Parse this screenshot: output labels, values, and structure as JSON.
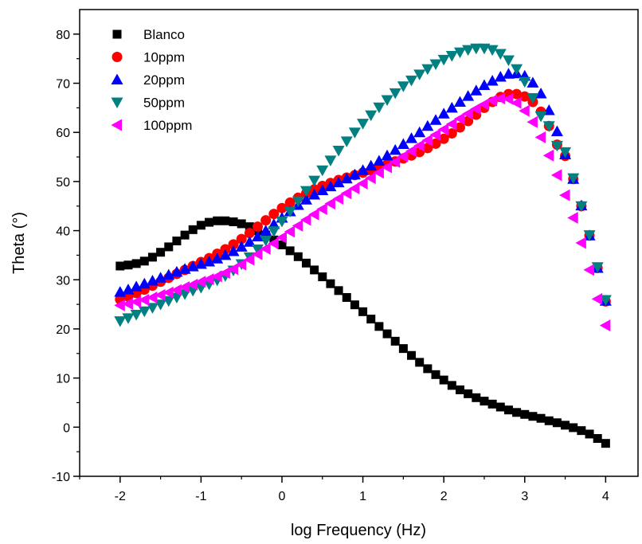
{
  "chart_data": {
    "type": "scatter",
    "title": "",
    "xlabel": "log Frequency (Hz)",
    "ylabel": "Theta (°)",
    "xlim": [
      -2.5,
      4.4
    ],
    "ylim": [
      -10,
      85
    ],
    "xticks": [
      -2,
      -1,
      0,
      1,
      2,
      3,
      4
    ],
    "yticks": [
      -10,
      0,
      10,
      20,
      30,
      40,
      50,
      60,
      70,
      80
    ],
    "legend_position": "top-left",
    "grid": false,
    "series": [
      {
        "name": "Blanco",
        "marker": "square",
        "color": "#000000",
        "x": [
          -2.0,
          -1.9,
          -1.8,
          -1.7,
          -1.6,
          -1.5,
          -1.4,
          -1.3,
          -1.2,
          -1.1,
          -1.0,
          -0.9,
          -0.8,
          -0.7,
          -0.6,
          -0.5,
          -0.4,
          -0.3,
          -0.2,
          -0.1,
          0.0,
          0.1,
          0.2,
          0.3,
          0.4,
          0.5,
          0.6,
          0.7,
          0.8,
          0.9,
          1.0,
          1.1,
          1.2,
          1.3,
          1.4,
          1.5,
          1.6,
          1.7,
          1.8,
          1.9,
          2.0,
          2.1,
          2.2,
          2.3,
          2.4,
          2.5,
          2.6,
          2.7,
          2.8,
          2.9,
          3.0,
          3.1,
          3.2,
          3.3,
          3.4,
          3.5,
          3.6,
          3.7,
          3.8,
          3.9,
          4.0
        ],
        "y": [
          32.8,
          33.0,
          33.3,
          33.8,
          34.6,
          35.6,
          36.7,
          37.9,
          39.1,
          40.2,
          41.1,
          41.7,
          42.0,
          42.0,
          41.8,
          41.4,
          40.8,
          40.0,
          39.1,
          38.1,
          37.1,
          35.9,
          34.7,
          33.4,
          32.0,
          30.6,
          29.2,
          27.8,
          26.4,
          24.9,
          23.5,
          22.0,
          20.5,
          19.0,
          17.5,
          16.0,
          14.6,
          13.2,
          11.9,
          10.7,
          9.6,
          8.5,
          7.6,
          6.8,
          6.0,
          5.3,
          4.7,
          4.1,
          3.5,
          3.0,
          2.6,
          2.2,
          1.8,
          1.3,
          0.9,
          0.4,
          -0.1,
          -0.7,
          -1.4,
          -2.3,
          -3.3
        ]
      },
      {
        "name": "10ppm",
        "marker": "circle",
        "color": "#ff0000",
        "x": [
          -2.0,
          -1.9,
          -1.8,
          -1.7,
          -1.6,
          -1.5,
          -1.4,
          -1.3,
          -1.2,
          -1.1,
          -1.0,
          -0.9,
          -0.8,
          -0.7,
          -0.6,
          -0.5,
          -0.4,
          -0.3,
          -0.2,
          -0.1,
          0.0,
          0.1,
          0.2,
          0.3,
          0.4,
          0.5,
          0.6,
          0.7,
          0.8,
          0.9,
          1.0,
          1.1,
          1.2,
          1.3,
          1.4,
          1.5,
          1.6,
          1.7,
          1.8,
          1.9,
          2.0,
          2.1,
          2.2,
          2.3,
          2.4,
          2.5,
          2.6,
          2.7,
          2.8,
          2.9,
          3.0,
          3.1,
          3.2,
          3.3,
          3.4,
          3.5,
          3.6,
          3.7,
          3.8,
          3.9,
          4.0
        ],
        "y": [
          26.0,
          26.6,
          27.3,
          28.0,
          28.8,
          29.6,
          30.4,
          31.2,
          32.0,
          32.8,
          33.6,
          34.4,
          35.3,
          36.2,
          37.2,
          38.3,
          39.5,
          40.8,
          42.1,
          43.4,
          44.6,
          45.7,
          46.7,
          47.6,
          48.4,
          49.1,
          49.7,
          50.3,
          50.8,
          51.3,
          51.8,
          52.3,
          52.9,
          53.5,
          54.1,
          54.7,
          55.3,
          56.0,
          56.8,
          57.7,
          58.7,
          59.8,
          61.0,
          62.3,
          63.6,
          65.0,
          66.2,
          67.2,
          67.8,
          67.8,
          67.3,
          66.2,
          64.2,
          61.3,
          57.5,
          55.2,
          50.5,
          45.0,
          39.0,
          32.4,
          25.6
        ]
      },
      {
        "name": "20ppm",
        "marker": "triangle-up",
        "color": "#0000ff",
        "x": [
          -2.0,
          -1.9,
          -1.8,
          -1.7,
          -1.6,
          -1.5,
          -1.4,
          -1.3,
          -1.2,
          -1.1,
          -1.0,
          -0.9,
          -0.8,
          -0.7,
          -0.6,
          -0.5,
          -0.4,
          -0.3,
          -0.2,
          -0.1,
          0.0,
          0.1,
          0.2,
          0.3,
          0.4,
          0.5,
          0.6,
          0.7,
          0.8,
          0.9,
          1.0,
          1.1,
          1.2,
          1.3,
          1.4,
          1.5,
          1.6,
          1.7,
          1.8,
          1.9,
          2.0,
          2.1,
          2.2,
          2.3,
          2.4,
          2.5,
          2.6,
          2.7,
          2.8,
          2.9,
          3.0,
          3.1,
          3.2,
          3.3,
          3.4,
          3.5,
          3.6,
          3.7,
          3.8,
          3.9,
          4.0
        ],
        "y": [
          27.5,
          28.0,
          28.6,
          29.2,
          29.8,
          30.4,
          31.0,
          31.6,
          32.2,
          32.7,
          33.2,
          33.7,
          34.3,
          35.0,
          35.8,
          36.7,
          37.7,
          38.8,
          40.0,
          41.3,
          42.6,
          43.9,
          45.2,
          46.3,
          47.3,
          48.2,
          49.0,
          49.8,
          50.6,
          51.4,
          52.3,
          53.2,
          54.2,
          55.3,
          56.4,
          57.6,
          58.8,
          60.0,
          61.3,
          62.5,
          63.8,
          65.0,
          66.2,
          67.4,
          68.5,
          69.6,
          70.5,
          71.3,
          71.9,
          72.0,
          71.5,
          70.1,
          67.9,
          64.5,
          60.2,
          55.5,
          50.5,
          45.1,
          39.0,
          32.4,
          25.7
        ]
      },
      {
        "name": "50ppm",
        "marker": "triangle-down",
        "color": "#008080",
        "x": [
          -2.0,
          -1.9,
          -1.8,
          -1.7,
          -1.6,
          -1.5,
          -1.4,
          -1.3,
          -1.2,
          -1.1,
          -1.0,
          -0.9,
          -0.8,
          -0.7,
          -0.6,
          -0.5,
          -0.4,
          -0.3,
          -0.2,
          -0.1,
          0.0,
          0.1,
          0.2,
          0.3,
          0.4,
          0.5,
          0.6,
          0.7,
          0.8,
          0.9,
          1.0,
          1.1,
          1.2,
          1.3,
          1.4,
          1.5,
          1.6,
          1.7,
          1.8,
          1.9,
          2.0,
          2.1,
          2.2,
          2.3,
          2.4,
          2.5,
          2.6,
          2.7,
          2.8,
          2.9,
          3.0,
          3.1,
          3.2,
          3.3,
          3.4,
          3.5,
          3.6,
          3.7,
          3.8,
          3.9,
          4.0
        ],
        "y": [
          21.6,
          22.2,
          22.9,
          23.6,
          24.3,
          25.0,
          25.7,
          26.4,
          27.1,
          27.8,
          28.4,
          29.1,
          29.9,
          30.8,
          31.9,
          33.2,
          34.6,
          36.2,
          38.0,
          39.9,
          41.9,
          43.9,
          46.0,
          48.1,
          50.2,
          52.3,
          54.3,
          56.3,
          58.2,
          60.0,
          61.8,
          63.5,
          65.1,
          66.6,
          68.0,
          69.4,
          70.6,
          71.8,
          72.9,
          73.9,
          74.8,
          75.6,
          76.3,
          76.8,
          77.1,
          77.1,
          76.8,
          76.0,
          74.7,
          72.9,
          70.3,
          67.0,
          63.3,
          61.3,
          57.3,
          56.0,
          50.7,
          45.0,
          39.1,
          32.6,
          25.9
        ]
      },
      {
        "name": "100ppm",
        "marker": "triangle-left",
        "color": "#ff00ff",
        "x": [
          -2.0,
          -1.9,
          -1.8,
          -1.7,
          -1.6,
          -1.5,
          -1.4,
          -1.3,
          -1.2,
          -1.1,
          -1.0,
          -0.9,
          -0.8,
          -0.7,
          -0.6,
          -0.5,
          -0.4,
          -0.3,
          -0.2,
          -0.1,
          0.0,
          0.1,
          0.2,
          0.3,
          0.4,
          0.5,
          0.6,
          0.7,
          0.8,
          0.9,
          1.0,
          1.1,
          1.2,
          1.3,
          1.4,
          1.5,
          1.6,
          1.7,
          1.8,
          1.9,
          2.0,
          2.1,
          2.2,
          2.3,
          2.4,
          2.5,
          2.6,
          2.7,
          2.8,
          2.9,
          3.0,
          3.1,
          3.2,
          3.3,
          3.4,
          3.5,
          3.6,
          3.7,
          3.8,
          3.9,
          4.0
        ],
        "y": [
          24.8,
          25.1,
          25.5,
          25.9,
          26.4,
          26.9,
          27.4,
          27.9,
          28.5,
          29.0,
          29.6,
          30.1,
          30.7,
          31.4,
          32.2,
          33.1,
          34.1,
          35.2,
          36.3,
          37.4,
          38.6,
          39.8,
          41.0,
          42.2,
          43.3,
          44.4,
          45.5,
          46.5,
          47.6,
          48.6,
          49.6,
          50.7,
          51.8,
          52.9,
          54.0,
          55.1,
          56.2,
          57.3,
          58.4,
          59.5,
          60.6,
          61.7,
          62.8,
          63.8,
          64.8,
          65.7,
          66.5,
          66.9,
          66.8,
          66.0,
          64.4,
          62.1,
          59.0,
          55.3,
          51.3,
          47.2,
          42.6,
          37.5,
          32.0,
          26.1,
          20.7
        ]
      }
    ]
  }
}
